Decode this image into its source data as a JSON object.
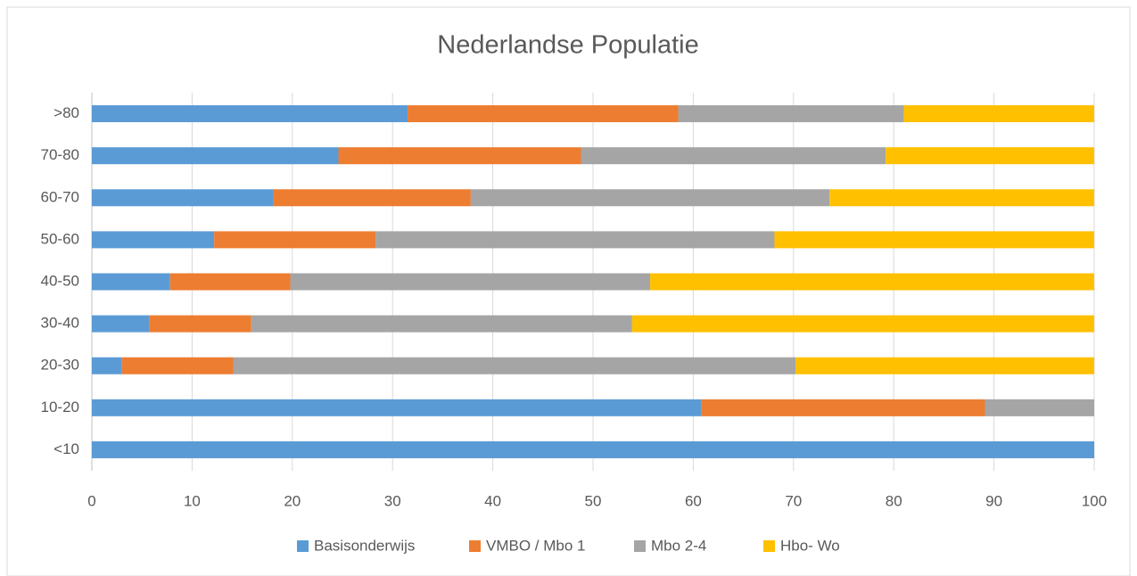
{
  "chart_data": {
    "type": "bar",
    "orientation": "horizontal",
    "stacked": true,
    "title": "Nederlandse Populatie",
    "categories": [
      "<10",
      "10-20",
      "20-30",
      "30-40",
      "40-50",
      "50-60",
      "60-70",
      "70-80",
      ">80"
    ],
    "series": [
      {
        "name": "Basisonderwijs",
        "color": "#5b9bd5",
        "values": [
          100,
          60.8,
          3.0,
          5.7,
          7.8,
          12.2,
          18.1,
          24.6,
          31.5
        ]
      },
      {
        "name": "VMBO / Mbo 1",
        "color": "#ed7d31",
        "values": [
          0,
          28.3,
          11.1,
          10.2,
          12.0,
          16.1,
          19.7,
          24.2,
          27.0
        ]
      },
      {
        "name": "Mbo 2-4",
        "color": "#a5a5a5",
        "values": [
          0,
          10.9,
          56.1,
          38.0,
          35.9,
          39.8,
          35.8,
          30.4,
          22.5
        ]
      },
      {
        "name": "Hbo- Wo",
        "color": "#ffc000",
        "values": [
          0,
          0,
          29.8,
          46.1,
          44.3,
          31.9,
          26.4,
          20.8,
          19.0
        ]
      }
    ],
    "xlim": [
      0,
      100
    ],
    "xticks": [
      0,
      10,
      20,
      30,
      40,
      50,
      60,
      70,
      80,
      90,
      100
    ],
    "grid": true,
    "legend": "bottom"
  }
}
